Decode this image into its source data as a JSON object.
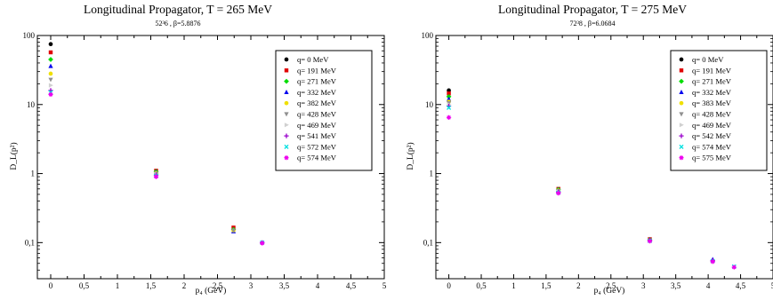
{
  "chart_data": [
    {
      "type": "scatter",
      "title": "Longitudinal Propagator, T = 265 MeV",
      "subtitle": "52³6 , β=5.8876",
      "xlabel": "p₄ (GeV)",
      "ylabel": "D_L(p²)",
      "xlim": [
        -0.2,
        5
      ],
      "ylim": [
        0.03,
        100
      ],
      "yscale": "log",
      "xticks": [
        "0",
        "0,5",
        "1",
        "1,5",
        "2",
        "2,5",
        "3",
        "3,5",
        "4",
        "4,5",
        "5"
      ],
      "yticks": [
        "0,1",
        "1",
        "10",
        "100"
      ],
      "legend_position": "top-right",
      "series": [
        {
          "name": "q= 0 MeV",
          "color": "#000000",
          "marker": "circle",
          "points": [
            [
              0,
              75
            ]
          ]
        },
        {
          "name": "q= 191 MeV",
          "color": "#e00000",
          "marker": "square",
          "points": [
            [
              0,
              57
            ],
            [
              1.58,
              1.1
            ],
            [
              2.74,
              0.165
            ]
          ]
        },
        {
          "name": "q= 271 MeV",
          "color": "#00dd00",
          "marker": "diamond",
          "points": [
            [
              0,
              45
            ],
            [
              1.58,
              1.07
            ],
            [
              2.74,
              0.155
            ]
          ]
        },
        {
          "name": "q= 332 MeV",
          "color": "#0000ee",
          "marker": "triangle-up",
          "points": [
            [
              0,
              36
            ],
            [
              1.58,
              1.05
            ],
            [
              2.74,
              0.145
            ]
          ]
        },
        {
          "name": "q= 382 MeV",
          "color": "#f0e000",
          "marker": "circle",
          "points": [
            [
              0,
              28
            ],
            [
              1.58,
              1.02
            ],
            [
              2.74,
              0.15
            ]
          ]
        },
        {
          "name": "q= 428 MeV",
          "color": "#909090",
          "marker": "triangle-down",
          "points": [
            [
              0,
              23
            ],
            [
              1.58,
              1.0
            ],
            [
              2.74,
              0.15
            ]
          ]
        },
        {
          "name": "q= 469 MeV",
          "color": "#d0d0d0",
          "marker": "triangle-right",
          "points": [
            [
              0,
              19
            ],
            [
              1.58,
              0.98
            ]
          ]
        },
        {
          "name": "q= 541 MeV",
          "color": "#9900cc",
          "marker": "plus",
          "points": [
            [
              0,
              16
            ],
            [
              1.58,
              0.95
            ],
            [
              3.17,
              0.1
            ]
          ]
        },
        {
          "name": "q= 572 MeV",
          "color": "#00e0e0",
          "marker": "x",
          "points": [
            [
              0,
              15
            ],
            [
              1.58,
              0.93
            ],
            [
              3.17,
              0.1
            ]
          ]
        },
        {
          "name": "q= 574 MeV",
          "color": "#ee00ee",
          "marker": "star",
          "points": [
            [
              0,
              14
            ],
            [
              1.58,
              0.9
            ],
            [
              3.17,
              0.098
            ]
          ]
        }
      ]
    },
    {
      "type": "scatter",
      "title": "Longitudinal Propagator, T = 275 MeV",
      "subtitle": "72³8 , β=6.0684",
      "xlabel": "p₄ (GeV)",
      "ylabel": "D_L(p²)",
      "xlim": [
        -0.2,
        5
      ],
      "ylim": [
        0.03,
        100
      ],
      "yscale": "log",
      "xticks": [
        "0",
        "0,5",
        "1",
        "1,5",
        "2",
        "2,5",
        "3",
        "3,5",
        "4",
        "4,5",
        "5"
      ],
      "yticks": [
        "0,1",
        "1",
        "10",
        "100"
      ],
      "legend_position": "top-right",
      "series": [
        {
          "name": "q= 0 MeV",
          "color": "#000000",
          "marker": "circle",
          "points": [
            [
              0,
              16
            ]
          ]
        },
        {
          "name": "q= 191 MeV",
          "color": "#e00000",
          "marker": "square",
          "points": [
            [
              0,
              14.5
            ],
            [
              1.69,
              0.6
            ],
            [
              3.1,
              0.112
            ]
          ]
        },
        {
          "name": "q= 271 MeV",
          "color": "#00dd00",
          "marker": "diamond",
          "points": [
            [
              0,
              13
            ],
            [
              1.69,
              0.59
            ],
            [
              3.1,
              0.11
            ]
          ]
        },
        {
          "name": "q= 332 MeV",
          "color": "#0000ee",
          "marker": "triangle-up",
          "points": [
            [
              0,
              12
            ],
            [
              1.69,
              0.58
            ],
            [
              3.1,
              0.11
            ],
            [
              4.07,
              0.057
            ]
          ]
        },
        {
          "name": "q= 383 MeV",
          "color": "#f0e000",
          "marker": "circle",
          "points": [
            [
              0,
              11
            ],
            [
              1.69,
              0.57
            ],
            [
              3.1,
              0.108
            ]
          ]
        },
        {
          "name": "q= 428 MeV",
          "color": "#909090",
          "marker": "triangle-down",
          "points": [
            [
              0,
              10.5
            ],
            [
              1.69,
              0.56
            ],
            [
              3.1,
              0.108
            ]
          ]
        },
        {
          "name": "q= 469 MeV",
          "color": "#d0d0d0",
          "marker": "triangle-right",
          "points": [
            [
              0,
              10
            ],
            [
              1.69,
              0.55
            ]
          ]
        },
        {
          "name": "q= 542 MeV",
          "color": "#9900cc",
          "marker": "plus",
          "points": [
            [
              0,
              9.5
            ],
            [
              1.69,
              0.54
            ],
            [
              3.1,
              0.107
            ],
            [
              4.07,
              0.055
            ]
          ]
        },
        {
          "name": "q= 574 MeV",
          "color": "#00e0e0",
          "marker": "x",
          "points": [
            [
              0,
              9
            ],
            [
              1.69,
              0.53
            ],
            [
              3.1,
              0.106
            ],
            [
              4.07,
              0.054
            ],
            [
              4.4,
              0.045
            ]
          ]
        },
        {
          "name": "q= 575 MeV",
          "color": "#ee00ee",
          "marker": "star",
          "points": [
            [
              0,
              6.5
            ],
            [
              1.69,
              0.52
            ],
            [
              3.1,
              0.105
            ],
            [
              4.07,
              0.053
            ],
            [
              4.4,
              0.044
            ]
          ]
        }
      ]
    }
  ]
}
